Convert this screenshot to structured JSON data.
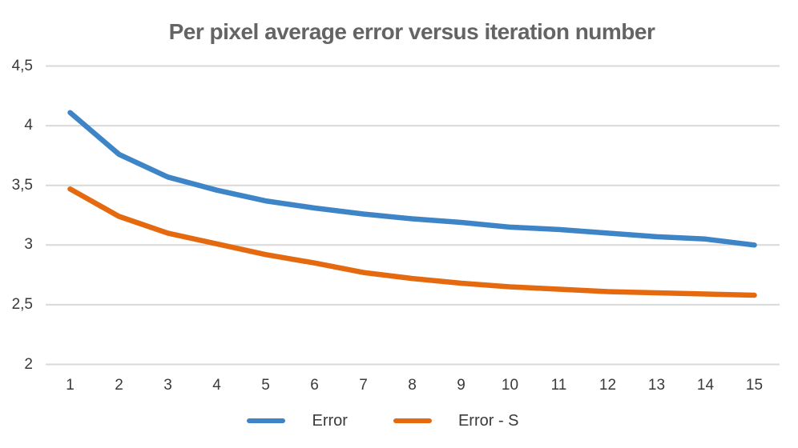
{
  "page": {
    "background": "#ffffff"
  },
  "colors": {
    "grid": "#d9d9d9",
    "title_text": "#646464",
    "axis_text": "#3a3a3a",
    "legend_text": "#3a3a3a"
  },
  "chart_data": {
    "type": "line",
    "title": "Per pixel average error versus iteration number",
    "xlabel": "",
    "ylabel": "",
    "x": [
      1,
      2,
      3,
      4,
      5,
      6,
      7,
      8,
      9,
      10,
      11,
      12,
      13,
      14,
      15
    ],
    "x_tick_labels": [
      "1",
      "2",
      "3",
      "4",
      "5",
      "6",
      "7",
      "8",
      "9",
      "10",
      "11",
      "12",
      "13",
      "14",
      "15"
    ],
    "y_tick_values": [
      4.5,
      4,
      3.5,
      3,
      2.5,
      2
    ],
    "y_tick_labels": [
      "4,5",
      "4",
      "3,5",
      "3",
      "2,5",
      "2"
    ],
    "xlim": [
      1,
      15
    ],
    "ylim": [
      2,
      4.5
    ],
    "grid": true,
    "legend_position": "bottom",
    "decimal_separator": ",",
    "series": [
      {
        "name": "Error",
        "color": "#3d85c6",
        "values": [
          4.11,
          3.76,
          3.57,
          3.46,
          3.37,
          3.31,
          3.26,
          3.22,
          3.19,
          3.15,
          3.13,
          3.1,
          3.07,
          3.05,
          3.0
        ]
      },
      {
        "name": "Error - S",
        "color": "#e5690e",
        "values": [
          3.47,
          3.24,
          3.1,
          3.01,
          2.92,
          2.85,
          2.77,
          2.72,
          2.68,
          2.65,
          2.63,
          2.61,
          2.6,
          2.59,
          2.58
        ]
      }
    ]
  }
}
